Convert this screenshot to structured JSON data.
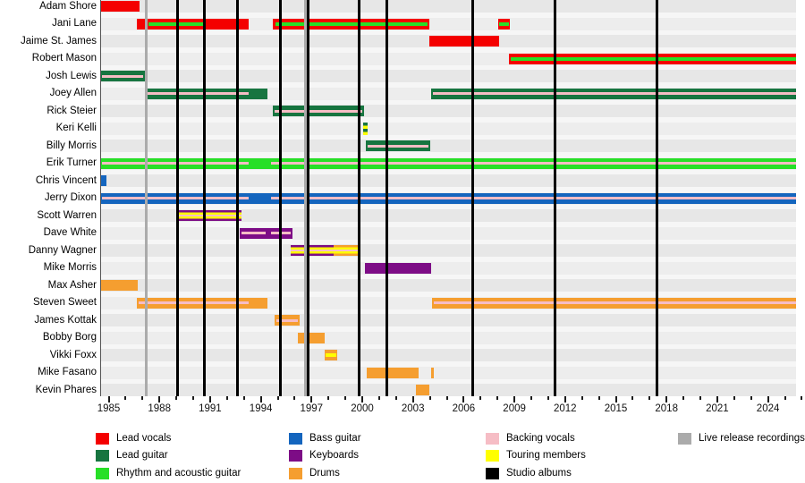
{
  "colors": {
    "red": "#f40000",
    "darkgreen": "#177540",
    "brightgreen": "#27df27",
    "blue": "#1465be",
    "purple": "#7d0c86",
    "orange": "#f59e30",
    "pink": "#f6bdc5",
    "yellow": "#ffff00",
    "black": "#000000",
    "gray": "#ababab"
  },
  "chart_data": {
    "type": "timeline",
    "x_axis": {
      "major_tick_years": [
        1985,
        1988,
        1991,
        1994,
        1997,
        2000,
        2003,
        2006,
        2009,
        2012,
        2015,
        2018,
        2021,
        2024
      ],
      "minor_tick_every": 1,
      "range": [
        1984.5,
        2025.7
      ]
    },
    "album_lines": [
      1989.07,
      1990.66,
      1992.64,
      1995.17,
      1996.81,
      1999.79,
      2001.44,
      2006.52,
      2011.42,
      2017.42
    ],
    "live_lines": [
      1987.2,
      1996.62
    ],
    "members": [
      {
        "name": "Adam Shore",
        "segments": [
          {
            "from": 1984.5,
            "to": 1986.8,
            "color": "red"
          }
        ]
      },
      {
        "name": "Jani Lane",
        "segments": [
          {
            "from": 1986.67,
            "to": 1993.3,
            "color": "red",
            "stripes": [
              {
                "color": "brightgreen",
                "from": 1987.35,
                "to": 1990.74,
                "h": 4
              }
            ]
          },
          {
            "from": 1994.69,
            "to": 2003.97,
            "color": "red",
            "stripes": [
              {
                "color": "brightgreen",
                "from": 1994.85,
                "to": 2003.86,
                "h": 4
              }
            ]
          },
          {
            "from": 2008.03,
            "to": 2008.73,
            "color": "red",
            "stripes": [
              {
                "color": "brightgreen",
                "from": 2008.08,
                "to": 2008.68,
                "h": 4
              }
            ]
          }
        ]
      },
      {
        "name": "Jaime St. James",
        "segments": [
          {
            "from": 2003.97,
            "to": 2008.1,
            "color": "red"
          }
        ]
      },
      {
        "name": "Robert Mason",
        "segments": [
          {
            "from": 2008.68,
            "to": 2025.66,
            "color": "red",
            "stripes": [
              {
                "color": "brightgreen",
                "from": 2008.78,
                "to": 2025.66,
                "h": 4
              }
            ]
          }
        ]
      },
      {
        "name": "Josh Lewis",
        "segments": [
          {
            "from": 1984.5,
            "to": 1987.14,
            "color": "darkgreen",
            "stripes": [
              {
                "color": "pink",
                "from": 1984.6,
                "to": 1987.06
              }
            ]
          }
        ]
      },
      {
        "name": "Joey Allen",
        "segments": [
          {
            "from": 1987.14,
            "to": 1994.37,
            "color": "darkgreen",
            "stripes": [
              {
                "color": "pink",
                "from": 1987.25,
                "to": 1993.3
              }
            ]
          },
          {
            "from": 2004.06,
            "to": 2025.66,
            "color": "darkgreen",
            "stripes": [
              {
                "color": "pink",
                "from": 2004.16,
                "to": 2025.66
              }
            ]
          }
        ]
      },
      {
        "name": "Rick Steier",
        "segments": [
          {
            "from": 1994.71,
            "to": 2000.11,
            "color": "darkgreen",
            "stripes": [
              {
                "color": "pink",
                "from": 1994.82,
                "to": 2000.01
              }
            ]
          }
        ]
      },
      {
        "name": "Keri Kelli",
        "segments": [
          {
            "from": 2000.03,
            "to": 2000.3,
            "color": "darkgreen",
            "style": "touring-guitar"
          }
        ]
      },
      {
        "name": "Billy Morris",
        "segments": [
          {
            "from": 2000.21,
            "to": 2004.02,
            "color": "darkgreen",
            "stripes": [
              {
                "color": "pink",
                "from": 2000.32,
                "to": 2003.92
              }
            ]
          }
        ]
      },
      {
        "name": "Erik Turner",
        "segments": [
          {
            "from": 1984.5,
            "to": 2025.66,
            "color": "brightgreen",
            "stripes": [
              {
                "color": "pink",
                "from": 1984.6,
                "to": 1993.3
              },
              {
                "color": "pink",
                "from": 1994.58,
                "to": 2025.66
              }
            ]
          }
        ]
      },
      {
        "name": "Chris Vincent",
        "segments": [
          {
            "from": 1984.5,
            "to": 1984.85,
            "color": "blue"
          }
        ]
      },
      {
        "name": "Jerry Dixon",
        "segments": [
          {
            "from": 1984.5,
            "to": 2025.66,
            "color": "blue",
            "stripes": [
              {
                "color": "pink",
                "from": 1984.6,
                "to": 1993.3
              },
              {
                "color": "pink",
                "from": 1994.58,
                "to": 2025.66
              }
            ]
          }
        ]
      },
      {
        "name": "Scott Warren",
        "segments": [
          {
            "from": 1989.06,
            "to": 1992.86,
            "color": "purple",
            "style": "touring"
          }
        ]
      },
      {
        "name": "Dave White",
        "segments": [
          {
            "from": 1992.77,
            "to": 1995.86,
            "color": "purple",
            "stripes": [
              {
                "color": "pink",
                "from": 1992.87,
                "to": 1994.3
              },
              {
                "color": "pink",
                "from": 1994.62,
                "to": 1995.76
              }
            ]
          }
        ]
      },
      {
        "name": "Danny Wagner",
        "segments": [
          {
            "from": 1995.77,
            "to": 1998.31,
            "color": "purple",
            "style": "touring"
          },
          {
            "from": 1998.31,
            "to": 1999.84,
            "color": "orange",
            "style": "touring"
          }
        ]
      },
      {
        "name": "Mike Morris",
        "segments": [
          {
            "from": 2000.17,
            "to": 2004.06,
            "color": "purple"
          }
        ]
      },
      {
        "name": "Max Asher",
        "segments": [
          {
            "from": 1984.5,
            "to": 1986.72,
            "color": "orange"
          }
        ]
      },
      {
        "name": "Steven Sweet",
        "segments": [
          {
            "from": 1986.65,
            "to": 1994.41,
            "color": "orange",
            "stripes": [
              {
                "color": "pink",
                "from": 1986.76,
                "to": 1993.3
              }
            ]
          },
          {
            "from": 2004.14,
            "to": 2025.66,
            "color": "orange",
            "stripes": [
              {
                "color": "pink",
                "from": 2004.24,
                "to": 2025.66
              }
            ]
          }
        ]
      },
      {
        "name": "James Kottak",
        "segments": [
          {
            "from": 1994.8,
            "to": 1996.29,
            "color": "orange",
            "stripes": [
              {
                "color": "pink",
                "from": 1994.9,
                "to": 1996.19
              }
            ]
          }
        ]
      },
      {
        "name": "Bobby Borg",
        "segments": [
          {
            "from": 1996.21,
            "to": 1997.79,
            "color": "orange"
          }
        ]
      },
      {
        "name": "Vikki Foxx",
        "segments": [
          {
            "from": 1997.79,
            "to": 1998.5,
            "color": "orange",
            "stripes": [
              {
                "color": "yellow",
                "from": 1997.84,
                "to": 1998.45,
                "h": 4
              }
            ]
          }
        ]
      },
      {
        "name": "Mike Fasano",
        "segments": [
          {
            "from": 2000.26,
            "to": 2003.35,
            "color": "orange"
          },
          {
            "from": 2004.06,
            "to": 2004.22,
            "color": "orange"
          }
        ]
      },
      {
        "name": "Kevin Phares",
        "segments": [
          {
            "from": 2003.18,
            "to": 2003.97,
            "color": "orange"
          }
        ]
      }
    ]
  },
  "legend": {
    "columns": [
      [
        {
          "label": "Lead vocals",
          "color": "red"
        },
        {
          "label": "Lead guitar",
          "color": "darkgreen"
        },
        {
          "label": "Rhythm and acoustic guitar",
          "color": "brightgreen"
        }
      ],
      [
        {
          "label": "Bass guitar",
          "color": "blue"
        },
        {
          "label": "Keyboards",
          "color": "purple"
        },
        {
          "label": "Drums",
          "color": "orange"
        }
      ],
      [
        {
          "label": "Backing vocals",
          "color": "pink"
        },
        {
          "label": "Touring members",
          "color": "yellow"
        },
        {
          "label": "Studio albums",
          "color": "black"
        }
      ],
      [
        {
          "label": "Live release recordings",
          "color": "gray"
        }
      ]
    ]
  }
}
